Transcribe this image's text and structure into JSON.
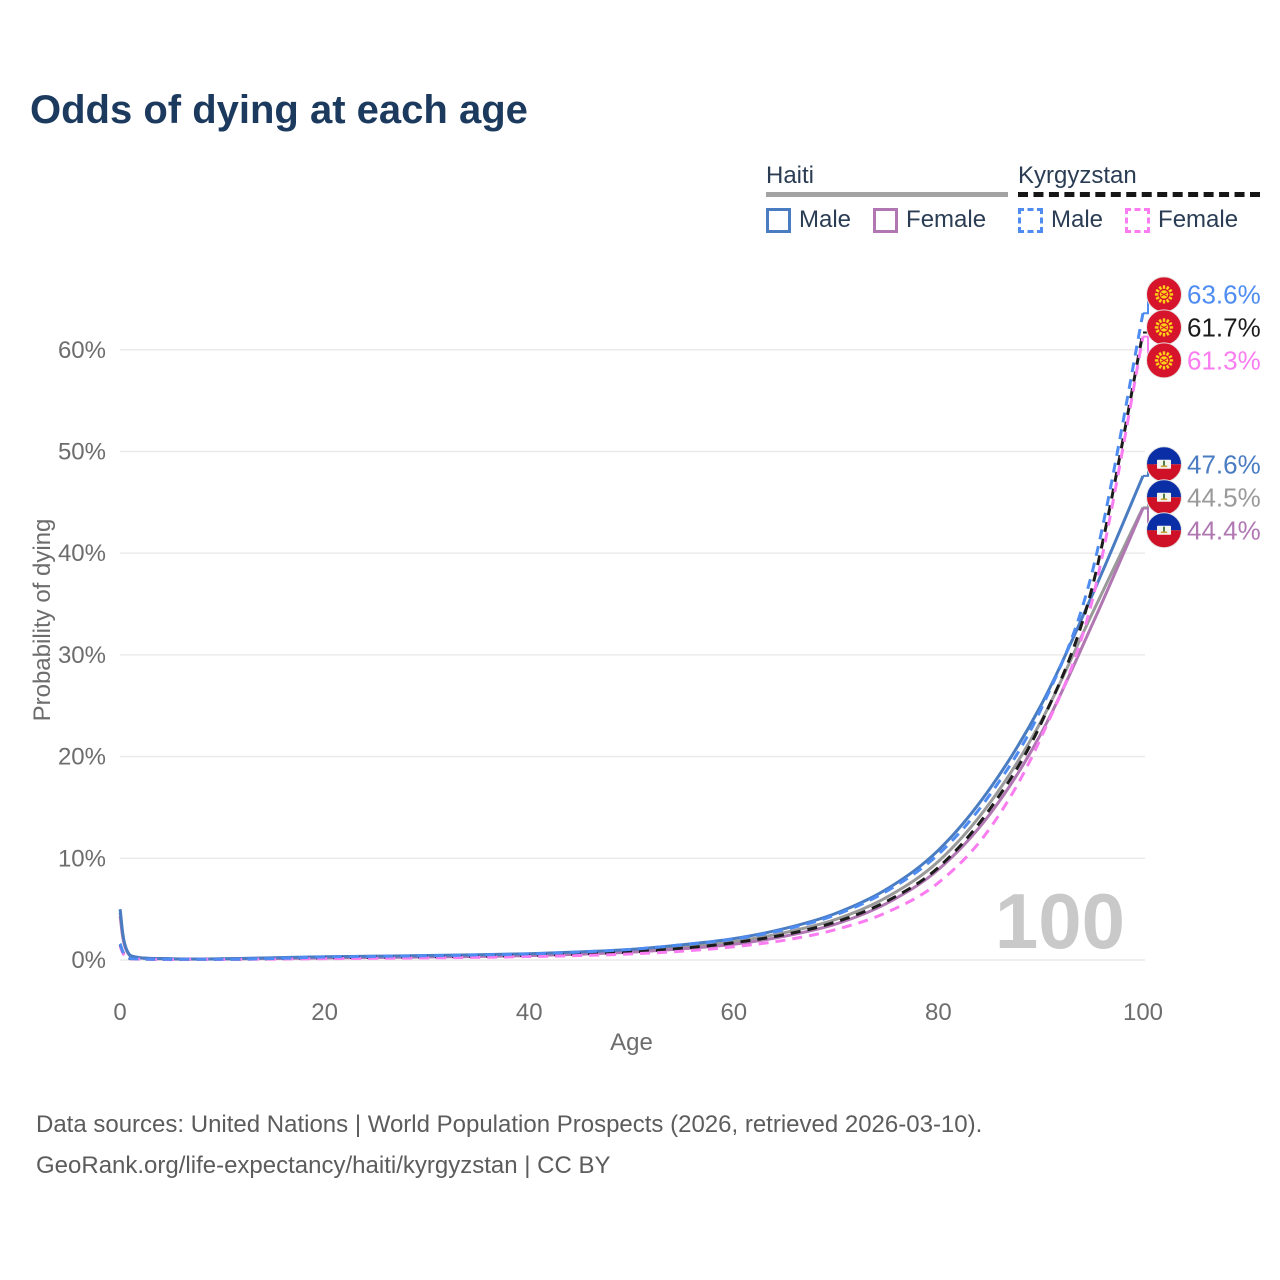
{
  "title": "Odds of dying at each age",
  "legend": {
    "position": "top-right",
    "groups": [
      {
        "label": "Haiti",
        "line_style": "solid",
        "underline_color": "#a3a3a3",
        "items": [
          {
            "label": "Male",
            "color": "#4a7cc2"
          },
          {
            "label": "Female",
            "color": "#b077b2"
          }
        ]
      },
      {
        "label": "Kyrgyzstan",
        "line_style": "dashed",
        "underline_color": "#161616",
        "items": [
          {
            "label": "Male",
            "color": "#4e8cf2"
          },
          {
            "label": "Female",
            "color": "#f97cf0"
          }
        ]
      }
    ]
  },
  "flags": {
    "kyrgyzstan": {
      "field": "#d6142c",
      "sun": "#fdd216"
    },
    "haiti": {
      "top": "#0a2ea5",
      "bottom": "#ce1126",
      "panel": "#f5f5ef",
      "palm": "#3c6e34",
      "base": "#c9a13b"
    }
  },
  "chart_data": {
    "type": "line",
    "title": "Odds of dying at each age",
    "xlabel": "Age",
    "ylabel": "Probability of dying",
    "xlim": [
      0,
      100
    ],
    "ylim": [
      0,
      66
    ],
    "grid": "horizontal",
    "legend_position": "top-right",
    "watermark": "100",
    "x_ticks": [
      {
        "value": 0,
        "label": "0"
      },
      {
        "value": 20,
        "label": "20"
      },
      {
        "value": 40,
        "label": "40"
      },
      {
        "value": 60,
        "label": "60"
      },
      {
        "value": 80,
        "label": "80"
      },
      {
        "value": 100,
        "label": "100"
      }
    ],
    "y_ticks": [
      {
        "value": 0,
        "label": "0%"
      },
      {
        "value": 10,
        "label": "10%"
      },
      {
        "value": 20,
        "label": "20%"
      },
      {
        "value": 30,
        "label": "30%"
      },
      {
        "value": 40,
        "label": "40%"
      },
      {
        "value": 50,
        "label": "50%"
      },
      {
        "value": 60,
        "label": "60%"
      }
    ],
    "x": [
      0,
      1,
      5,
      10,
      15,
      20,
      25,
      30,
      35,
      40,
      45,
      50,
      55,
      60,
      65,
      70,
      75,
      80,
      85,
      90,
      95,
      100
    ],
    "series": [
      {
        "name": "Haiti — Both sexes",
        "color": "#9a9a9a",
        "dash": false,
        "flag": "haiti",
        "end_label": "44.5%",
        "values": [
          4.65,
          0.42,
          0.11,
          0.11,
          0.18,
          0.26,
          0.31,
          0.36,
          0.43,
          0.52,
          0.68,
          0.9,
          1.28,
          1.8,
          2.7,
          4.0,
          6.2,
          9.7,
          15.4,
          23.4,
          34.0,
          44.5
        ]
      },
      {
        "name": "Haiti — Female",
        "color": "#b077b2",
        "dash": false,
        "flag": "haiti",
        "end_label": "44.4%",
        "values": [
          4.3,
          0.4,
          0.1,
          0.1,
          0.15,
          0.2,
          0.25,
          0.29,
          0.35,
          0.43,
          0.57,
          0.77,
          1.1,
          1.55,
          2.35,
          3.55,
          5.6,
          8.9,
          14.3,
          22.2,
          32.9,
          44.4
        ]
      },
      {
        "name": "Haiti — Male",
        "color": "#4a7cc2",
        "dash": false,
        "flag": "haiti",
        "end_label": "47.6%",
        "values": [
          5.0,
          0.45,
          0.12,
          0.12,
          0.22,
          0.32,
          0.38,
          0.44,
          0.52,
          0.62,
          0.8,
          1.05,
          1.5,
          2.1,
          3.1,
          4.6,
          7.0,
          10.8,
          16.8,
          25.0,
          35.8,
          47.6
        ]
      },
      {
        "name": "Kyrgyzstan — Both sexes",
        "color": "#1c1c1c",
        "dash": true,
        "flag": "kyrgyzstan",
        "end_label": "61.7%",
        "values": [
          1.5,
          0.13,
          0.05,
          0.06,
          0.12,
          0.22,
          0.27,
          0.32,
          0.38,
          0.47,
          0.6,
          0.8,
          1.15,
          1.7,
          2.5,
          3.75,
          5.8,
          9.1,
          14.8,
          23.2,
          36.5,
          61.7
        ]
      },
      {
        "name": "Kyrgyzstan — Female",
        "color": "#f97cf0",
        "dash": true,
        "flag": "kyrgyzstan",
        "end_label": "61.3%",
        "values": [
          1.35,
          0.11,
          0.04,
          0.05,
          0.09,
          0.13,
          0.17,
          0.21,
          0.26,
          0.34,
          0.44,
          0.6,
          0.87,
          1.3,
          1.95,
          3.0,
          4.7,
          7.6,
          12.9,
          21.8,
          35.2,
          61.3
        ]
      },
      {
        "name": "Kyrgyzstan — Male",
        "color": "#4e8cf2",
        "dash": true,
        "flag": "kyrgyzstan",
        "end_label": "63.6%",
        "values": [
          1.6,
          0.15,
          0.06,
          0.07,
          0.15,
          0.3,
          0.36,
          0.42,
          0.5,
          0.6,
          0.78,
          1.05,
          1.5,
          2.05,
          3.0,
          4.45,
          6.8,
          10.4,
          16.2,
          24.6,
          38.0,
          63.6
        ]
      }
    ]
  },
  "footer": {
    "line1": "Data sources: United Nations | World Population Prospects (2026, retrieved 2026-03-10).",
    "line2": "GeoRank.org/life-expectancy/haiti/kyrgyzstan | CC BY"
  }
}
